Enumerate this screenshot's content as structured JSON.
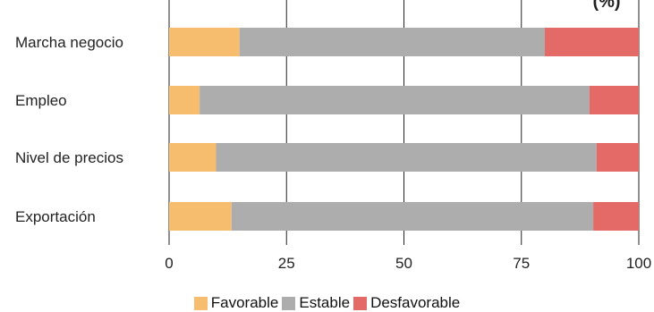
{
  "chart_data": {
    "type": "bar",
    "orientation": "horizontal",
    "stacked": true,
    "title": "",
    "visible_title_fragment": "(%)",
    "categories": [
      "Marcha negocio",
      "Empleo",
      "Nivel de precios",
      "Exportación"
    ],
    "series": [
      {
        "name": "Favorable",
        "color": "#f7bd6e",
        "values": [
          15,
          6.5,
          10,
          13.3
        ]
      },
      {
        "name": "Estable",
        "color": "#adadad",
        "values": [
          65,
          83,
          81,
          77
        ]
      },
      {
        "name": "Desfavorable",
        "color": "#e36a67",
        "values": [
          20,
          10.5,
          9,
          9.7
        ]
      }
    ],
    "xlim": [
      0,
      100
    ],
    "xticks": [
      "0",
      "25",
      "50",
      "75",
      "100"
    ],
    "grid": true,
    "legend_position": "bottom"
  }
}
